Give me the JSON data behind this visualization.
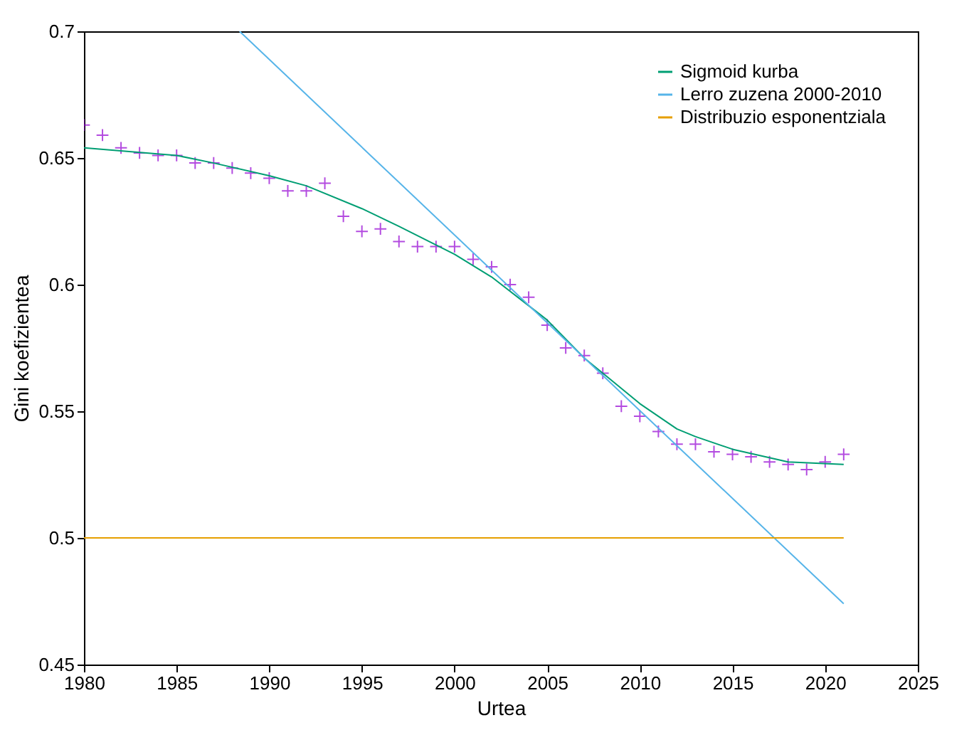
{
  "chart_data": {
    "type": "line",
    "xlabel": "Urtea",
    "ylabel": "Gini koefizientea",
    "xlim": [
      1980,
      2025
    ],
    "xticks": [
      1980,
      1985,
      1990,
      1995,
      2000,
      2005,
      2010,
      2015,
      2020,
      2025
    ],
    "ylim": [
      0.45,
      0.7
    ],
    "yticks": [
      0.45,
      0.5,
      0.55,
      0.6,
      0.65,
      0.7
    ],
    "grid": false,
    "legend": "top right",
    "series": [
      {
        "type": "scatter",
        "marker": "cross",
        "color": "#9400d3",
        "x": [
          1980,
          1981,
          1982,
          1983,
          1984,
          1985,
          1986,
          1987,
          1988,
          1989,
          1990,
          1991,
          1992,
          1993,
          1994,
          1995,
          1996,
          1997,
          1998,
          1999,
          2000,
          2001,
          2002,
          2003,
          2004,
          2005,
          2006,
          2007,
          2008,
          2009,
          2010,
          2011,
          2012,
          2013,
          2014,
          2015,
          2016,
          2017,
          2018,
          2019,
          2020,
          2021
        ],
        "values": [
          0.663,
          0.659,
          0.654,
          0.652,
          0.651,
          0.651,
          0.648,
          0.648,
          0.646,
          0.644,
          0.642,
          0.637,
          0.637,
          0.64,
          0.627,
          0.621,
          0.622,
          0.617,
          0.615,
          0.615,
          0.615,
          0.61,
          0.607,
          0.6,
          0.595,
          0.584,
          0.575,
          0.572,
          0.565,
          0.552,
          0.548,
          0.542,
          0.537,
          0.537,
          0.534,
          0.533,
          0.532,
          0.53,
          0.529,
          0.527,
          0.53,
          0.533
        ]
      },
      {
        "type": "line",
        "name": "Sigmoid kurba",
        "color": "#009e73",
        "x": [
          1980,
          1985,
          1987,
          1990,
          1992,
          1995,
          1997,
          2000,
          2002,
          2005,
          2007,
          2008,
          2010,
          2012,
          2013,
          2015,
          2018,
          2021
        ],
        "values": [
          0.654,
          0.651,
          0.648,
          0.643,
          0.639,
          0.63,
          0.623,
          0.612,
          0.603,
          0.586,
          0.571,
          0.565,
          0.553,
          0.543,
          0.54,
          0.535,
          0.53,
          0.529
        ]
      },
      {
        "type": "line",
        "name": "Lerro zuzena 2000-2010",
        "color": "#56b4e9",
        "x": [
          1988.4,
          2021
        ],
        "values": [
          0.7,
          0.474
        ]
      },
      {
        "type": "line",
        "name": "Distribuzio esponentziala",
        "color": "#e69f00",
        "x": [
          1980,
          2021
        ],
        "values": [
          0.5,
          0.5
        ]
      }
    ]
  }
}
